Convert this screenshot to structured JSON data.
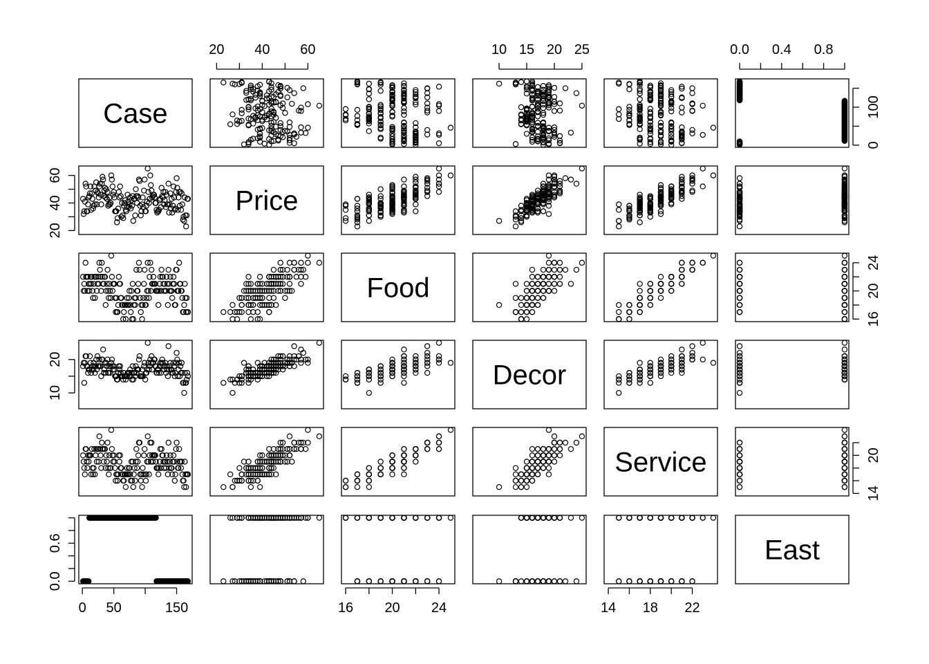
{
  "chart_data": {
    "type": "scatter",
    "subtype": "pairs-matrix",
    "variables": [
      "Case",
      "Price",
      "Food",
      "Decor",
      "Service",
      "East"
    ],
    "ranges": {
      "Case": [
        1,
        168
      ],
      "Price": [
        19,
        65
      ],
      "Food": [
        16,
        25
      ],
      "Decor": [
        6,
        25
      ],
      "Service": [
        14,
        24
      ],
      "East": [
        0,
        1
      ]
    },
    "ticks": {
      "Case": [
        0,
        50,
        100,
        150
      ],
      "Price": [
        20,
        40,
        60
      ],
      "Food": [
        16,
        20,
        24
      ],
      "Decor": [
        10,
        15,
        20,
        25
      ],
      "Service": [
        14,
        18,
        22
      ],
      "East": [
        0.0,
        0.4,
        0.8
      ]
    },
    "tick_labels": {
      "bottom": {
        "Case": [
          "0",
          "50",
          "150"
        ],
        "Food": [
          "16",
          "20",
          "24"
        ],
        "Service": [
          "14",
          "18",
          "22"
        ]
      },
      "top": {
        "Price": [
          "20",
          "40",
          "60"
        ],
        "Decor": [
          "10",
          "15",
          "20",
          "25"
        ],
        "East": [
          "0.0",
          "0.4",
          "0.8"
        ]
      },
      "left": {
        "Price": [
          "20",
          "40",
          "60"
        ],
        "Decor": [
          "10",
          "20"
        ],
        "East": [
          "0.0",
          "0.6"
        ]
      },
      "right": {
        "Case": [
          "0",
          "100"
        ],
        "Food": [
          "16",
          "20",
          "24"
        ],
        "Service": [
          "14",
          "20"
        ]
      }
    },
    "axis_ticks_drawn": {
      "bottom": {
        "Case": [
          0,
          50,
          100,
          150
        ],
        "Food": [
          16,
          18,
          20,
          22,
          24
        ],
        "Service": [
          14,
          16,
          18,
          20,
          22
        ]
      },
      "top": {
        "Price": [
          20,
          30,
          40,
          50,
          60
        ],
        "Decor": [
          10,
          15,
          20,
          25
        ],
        "East": [
          0.0,
          0.2,
          0.4,
          0.6,
          0.8,
          1.0
        ]
      },
      "left": {
        "Price": [
          20,
          30,
          40,
          50,
          60
        ],
        "Decor": [
          10,
          15,
          20
        ],
        "East": [
          0.0,
          0.2,
          0.4,
          0.6,
          0.8,
          1.0
        ]
      },
      "right": {
        "Case": [
          0,
          50,
          100,
          150
        ],
        "Food": [
          16,
          18,
          20,
          22,
          24
        ],
        "Service": [
          14,
          16,
          18,
          20,
          22
        ]
      }
    },
    "series": [
      {
        "name": "Case",
        "values": [
          1,
          2,
          3,
          4,
          5,
          6,
          7,
          8,
          9,
          10,
          11,
          12,
          13,
          14,
          15,
          16,
          17,
          18,
          19,
          20,
          21,
          22,
          23,
          24,
          25,
          26,
          27,
          28,
          29,
          30,
          31,
          32,
          33,
          34,
          35,
          36,
          37,
          38,
          39,
          40,
          41,
          42,
          43,
          44,
          45,
          46,
          47,
          48,
          49,
          50,
          51,
          52,
          53,
          54,
          55,
          56,
          57,
          58,
          59,
          60,
          61,
          62,
          63,
          64,
          65,
          66,
          67,
          68,
          69,
          70,
          71,
          72,
          73,
          74,
          75,
          76,
          77,
          78,
          79,
          80,
          81,
          82,
          83,
          84,
          85,
          86,
          87,
          88,
          89,
          90,
          91,
          92,
          93,
          94,
          95,
          96,
          97,
          98,
          99,
          100,
          101,
          102,
          103,
          104,
          105,
          106,
          107,
          108,
          109,
          110,
          111,
          112,
          113,
          114,
          115,
          116,
          117,
          118,
          119,
          120,
          121,
          122,
          123,
          124,
          125,
          126,
          127,
          128,
          129,
          130,
          131,
          132,
          133,
          134,
          135,
          136,
          137,
          138,
          139,
          140,
          141,
          142,
          143,
          144,
          145,
          146,
          147,
          148,
          149,
          150,
          151,
          152,
          153,
          154,
          155,
          156,
          157,
          158,
          159,
          160,
          161,
          162,
          163,
          164,
          165,
          166,
          167,
          168
        ]
      },
      {
        "name": "Price",
        "values": [
          43,
          32,
          34,
          41,
          54,
          52,
          34,
          34,
          39,
          44,
          45,
          47,
          52,
          35,
          47,
          43,
          36,
          38,
          52,
          39,
          49,
          55,
          39,
          48,
          47,
          44,
          52,
          54,
          46,
          39,
          54,
          59,
          57,
          45,
          49,
          51,
          44,
          50,
          43,
          48,
          38,
          39,
          44,
          39,
          40,
          60,
          57,
          52,
          46,
          48,
          44,
          34,
          34,
          34,
          26,
          29,
          36,
          48,
          44,
          52,
          45,
          30,
          40,
          31,
          29,
          38,
          40,
          42,
          35,
          34,
          37,
          46,
          41,
          37,
          39,
          44,
          36,
          42,
          38,
          45,
          27,
          43,
          43,
          31,
          50,
          45,
          40,
          45,
          44,
          57,
          56,
          38,
          31,
          34,
          39,
          44,
          37,
          49,
          57,
          34,
          34,
          38,
          41,
          65,
          48,
          40,
          43,
          60,
          53,
          49,
          44,
          45,
          46,
          46,
          44,
          40,
          40,
          35,
          33,
          34,
          34,
          35,
          42,
          43,
          37,
          51,
          45,
          44,
          48,
          39,
          42,
          48,
          37,
          46,
          39,
          39,
          54,
          33,
          39,
          47,
          36,
          43,
          33,
          38,
          52,
          44,
          35,
          36,
          48,
          58,
          51,
          35,
          44,
          48,
          38,
          48,
          35,
          47,
          39,
          28,
          30,
          27,
          44,
          31,
          23,
          31,
          43,
          43
        ]
      },
      {
        "name": "Food",
        "values": [
          22,
          20,
          21,
          20,
          24,
          22,
          22,
          20,
          22,
          21,
          20,
          21,
          22,
          21,
          22,
          20,
          19,
          21,
          22,
          19,
          22,
          22,
          20,
          21,
          22,
          21,
          24,
          23,
          22,
          20,
          24,
          22,
          21,
          21,
          22,
          22,
          18,
          20,
          21,
          23,
          20,
          19,
          21,
          20,
          19,
          25,
          22,
          20,
          21,
          21,
          21,
          19,
          17,
          19,
          17,
          17,
          18,
          22,
          21,
          21,
          19,
          19,
          18,
          18,
          16,
          17,
          18,
          18,
          16,
          18,
          19,
          18,
          18,
          19,
          20,
          18,
          17,
          20,
          16,
          21,
          16,
          18,
          19,
          18,
          19,
          23,
          20,
          20,
          21,
          24,
          23,
          19,
          17,
          18,
          16,
          18,
          19,
          21,
          23,
          18,
          18,
          19,
          20,
          24,
          20,
          19,
          22,
          24,
          20,
          23,
          21,
          21,
          22,
          21,
          21,
          21,
          20,
          20,
          20,
          20,
          18,
          20,
          21,
          22,
          20,
          23,
          22,
          22,
          21,
          20,
          21,
          20,
          20,
          22,
          21,
          18,
          23,
          21,
          20,
          22,
          20,
          20,
          19,
          21,
          22,
          21,
          18,
          18,
          23,
          23,
          20,
          20,
          20,
          24,
          21,
          21,
          20,
          20,
          19,
          17,
          17,
          18,
          21,
          19,
          17,
          19,
          17,
          17
        ]
      },
      {
        "name": "Decor",
        "values": [
          18,
          19,
          13,
          19,
          21,
          21,
          18,
          18,
          16,
          17,
          17,
          21,
          19,
          16,
          17,
          18,
          17,
          19,
          18,
          16,
          18,
          20,
          17,
          21,
          18,
          18,
          20,
          18,
          18,
          15,
          20,
          20,
          23,
          16,
          17,
          19,
          16,
          19,
          18,
          20,
          16,
          16,
          18,
          16,
          18,
          19,
          20,
          18,
          17,
          18,
          17,
          15,
          15,
          15,
          14,
          14,
          16,
          18,
          17,
          18,
          16,
          15,
          15,
          15,
          14,
          16,
          15,
          15,
          14,
          15,
          15,
          16,
          16,
          15,
          16,
          17,
          15,
          16,
          14,
          18,
          14,
          16,
          16,
          15,
          18,
          16,
          17,
          17,
          17,
          20,
          21,
          15,
          15,
          15,
          15,
          17,
          15,
          18,
          19,
          14,
          16,
          16,
          17,
          25,
          19,
          17,
          18,
          20,
          19,
          21,
          17,
          19,
          19,
          20,
          20,
          18,
          18,
          16,
          16,
          17,
          17,
          16,
          18,
          19,
          16,
          19,
          20,
          19,
          18,
          17,
          18,
          19,
          16,
          18,
          17,
          15,
          24,
          17,
          18,
          19,
          17,
          17,
          16,
          16,
          19,
          18,
          15,
          16,
          19,
          22,
          20,
          15,
          17,
          19,
          15,
          18,
          16,
          19,
          16,
          13,
          13,
          10,
          16,
          13,
          13,
          14,
          16,
          15
        ]
      },
      {
        "name": "Service",
        "values": [
          20,
          19,
          18,
          17,
          21,
          21,
          19,
          18,
          20,
          19,
          20,
          20,
          20,
          17,
          21,
          18,
          17,
          18,
          21,
          17,
          20,
          21,
          19,
          21,
          21,
          19,
          23,
          21,
          20,
          18,
          22,
          21,
          21,
          19,
          21,
          21,
          18,
          20,
          19,
          22,
          18,
          17,
          20,
          18,
          18,
          24,
          21,
          20,
          19,
          20,
          19,
          18,
          16,
          17,
          17,
          16,
          17,
          20,
          19,
          20,
          18,
          18,
          17,
          17,
          16,
          16,
          17,
          17,
          15,
          17,
          18,
          17,
          17,
          18,
          18,
          17,
          16,
          19,
          16,
          19,
          15,
          17,
          18,
          16,
          19,
          21,
          18,
          19,
          20,
          22,
          22,
          17,
          16,
          17,
          15,
          18,
          17,
          20,
          21,
          17,
          16,
          17,
          19,
          23,
          19,
          17,
          20,
          22,
          19,
          22,
          20,
          19,
          20,
          20,
          20,
          20,
          19,
          18,
          18,
          18,
          17,
          18,
          19,
          21,
          18,
          21,
          20,
          20,
          19,
          18,
          19,
          19,
          18,
          20,
          19,
          17,
          22,
          18,
          19,
          20,
          18,
          18,
          17,
          19,
          20,
          19,
          16,
          17,
          21,
          22,
          19,
          18,
          18,
          21,
          19,
          19,
          18,
          19,
          17,
          16,
          16,
          15,
          19,
          17,
          15,
          17,
          17,
          17
        ]
      },
      {
        "name": "East",
        "values": [
          0,
          0,
          0,
          0,
          0,
          0,
          0,
          0,
          0,
          0,
          1,
          1,
          1,
          1,
          1,
          1,
          1,
          1,
          1,
          1,
          1,
          1,
          1,
          1,
          1,
          1,
          1,
          1,
          1,
          1,
          1,
          1,
          1,
          1,
          1,
          1,
          1,
          1,
          1,
          1,
          1,
          1,
          1,
          1,
          1,
          1,
          1,
          1,
          1,
          1,
          1,
          1,
          1,
          1,
          1,
          1,
          1,
          1,
          1,
          1,
          1,
          1,
          1,
          1,
          1,
          1,
          1,
          1,
          1,
          1,
          1,
          1,
          1,
          1,
          1,
          1,
          1,
          1,
          1,
          1,
          1,
          1,
          1,
          1,
          1,
          1,
          1,
          1,
          1,
          1,
          1,
          1,
          1,
          1,
          1,
          1,
          1,
          1,
          1,
          1,
          1,
          1,
          1,
          1,
          1,
          1,
          1,
          1,
          1,
          1,
          1,
          1,
          1,
          1,
          1,
          1,
          1,
          0,
          0,
          0,
          0,
          0,
          0,
          0,
          0,
          0,
          0,
          0,
          0,
          0,
          0,
          0,
          0,
          0,
          0,
          0,
          0,
          0,
          0,
          0,
          0,
          0,
          0,
          0,
          0,
          0,
          0,
          0,
          0,
          0,
          0,
          0,
          0,
          0,
          0,
          0,
          0,
          0,
          0,
          0,
          0,
          0,
          0,
          0,
          0,
          0,
          0,
          0
        ]
      }
    ]
  }
}
